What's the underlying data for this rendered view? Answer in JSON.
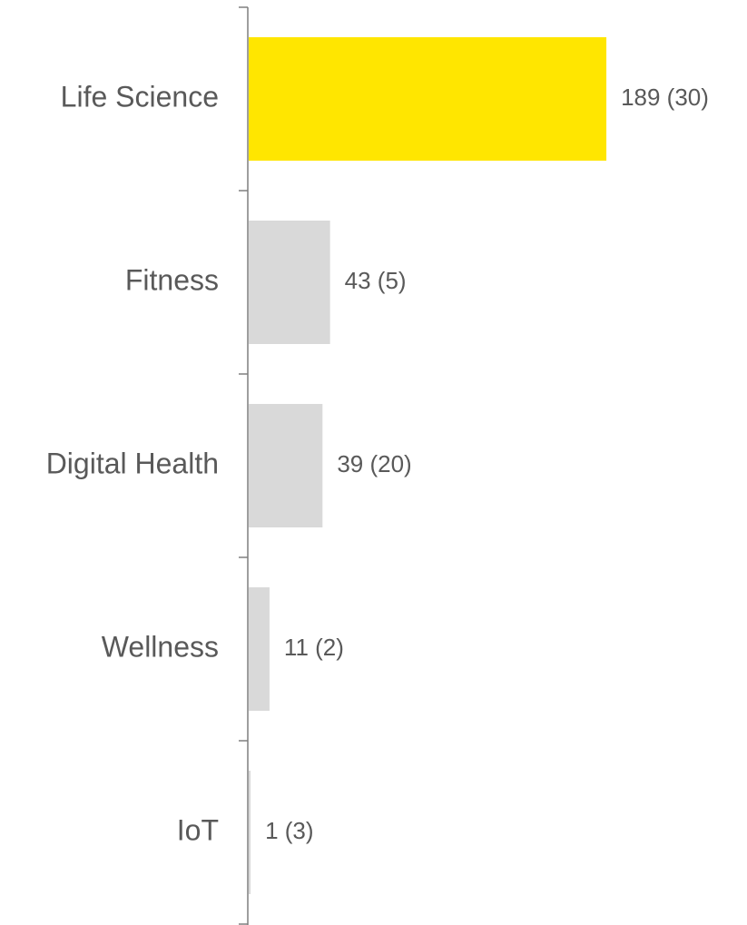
{
  "chart_data": {
    "type": "bar",
    "orientation": "horizontal",
    "categories": [
      "Life Science",
      "Fitness",
      "Digital Health",
      "Wellness",
      "IoT"
    ],
    "values": [
      189,
      43,
      39,
      11,
      1
    ],
    "value_labels": [
      "189 (30)",
      "43 (5)",
      "39 (20)",
      "11 (2)",
      "1 (3)"
    ],
    "colors": [
      "#ffe600",
      "#d9d9d9",
      "#d9d9d9",
      "#d9d9d9",
      "#d9d9d9"
    ]
  }
}
